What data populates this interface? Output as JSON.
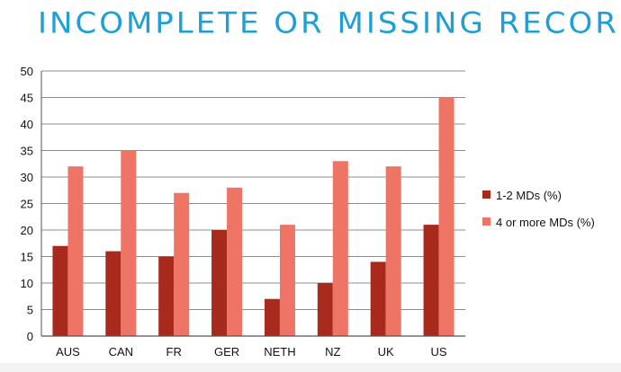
{
  "header": {
    "title": "INCOMPLETE OR MISSING RECORD"
  },
  "colors": {
    "title": "#1e9fd6",
    "series_1": "#a82a1c",
    "series_2": "#ee7466",
    "grid": "#8c8c8c"
  },
  "chart_data": {
    "type": "bar",
    "title": "INCOMPLETE OR MISSING RECORD",
    "xlabel": "",
    "ylabel": "",
    "categories": [
      "AUS",
      "CAN",
      "FR",
      "GER",
      "NETH",
      "NZ",
      "UK",
      "US"
    ],
    "series": [
      {
        "name": "1-2 MDs (%)",
        "values": [
          17,
          16,
          15,
          20,
          7,
          10,
          14,
          21
        ]
      },
      {
        "name": "4 or more MDs (%)",
        "values": [
          32,
          35,
          27,
          28,
          21,
          33,
          32,
          45
        ]
      }
    ],
    "ylim": [
      0,
      50
    ],
    "yticks": [
      0,
      5,
      10,
      15,
      20,
      25,
      30,
      35,
      40,
      45,
      50
    ],
    "grid": true,
    "legend_position": "right"
  }
}
